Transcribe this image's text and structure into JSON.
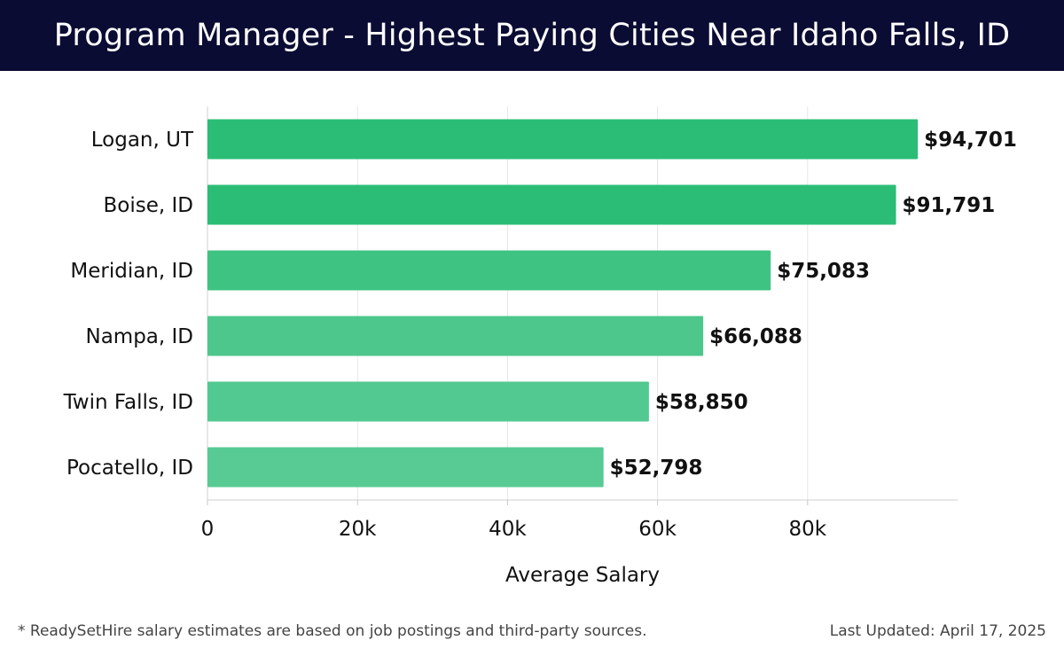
{
  "header": {
    "title": "Program Manager - Highest Paying Cities Near Idaho Falls, ID"
  },
  "footer": {
    "note": "* ReadySetHire salary estimates are based on job postings and third-party sources.",
    "updated": "Last Updated: April 17, 2025"
  },
  "chart_data": {
    "type": "bar",
    "orientation": "horizontal",
    "title": "Program Manager - Highest Paying Cities Near Idaho Falls, ID",
    "xlabel": "Average Salary",
    "ylabel": "",
    "categories": [
      "Logan, UT",
      "Boise, ID",
      "Meridian, ID",
      "Nampa, ID",
      "Twin Falls, ID",
      "Pocatello, ID"
    ],
    "values": [
      94701,
      91791,
      75083,
      66088,
      58850,
      52798
    ],
    "value_labels": [
      "$94,701",
      "$91,791",
      "$75,083",
      "$66,088",
      "$58,850",
      "$52,798"
    ],
    "xlim": [
      0,
      100000
    ],
    "xticks": [
      0,
      20000,
      40000,
      60000,
      80000
    ],
    "xtick_labels": [
      "0",
      "20k",
      "40k",
      "60k",
      "80k"
    ],
    "grid": true,
    "bar_colors": [
      "#2bbd76",
      "#2bbd76",
      "#3ec383",
      "#4dc78c",
      "#52c990",
      "#57cb93"
    ]
  }
}
